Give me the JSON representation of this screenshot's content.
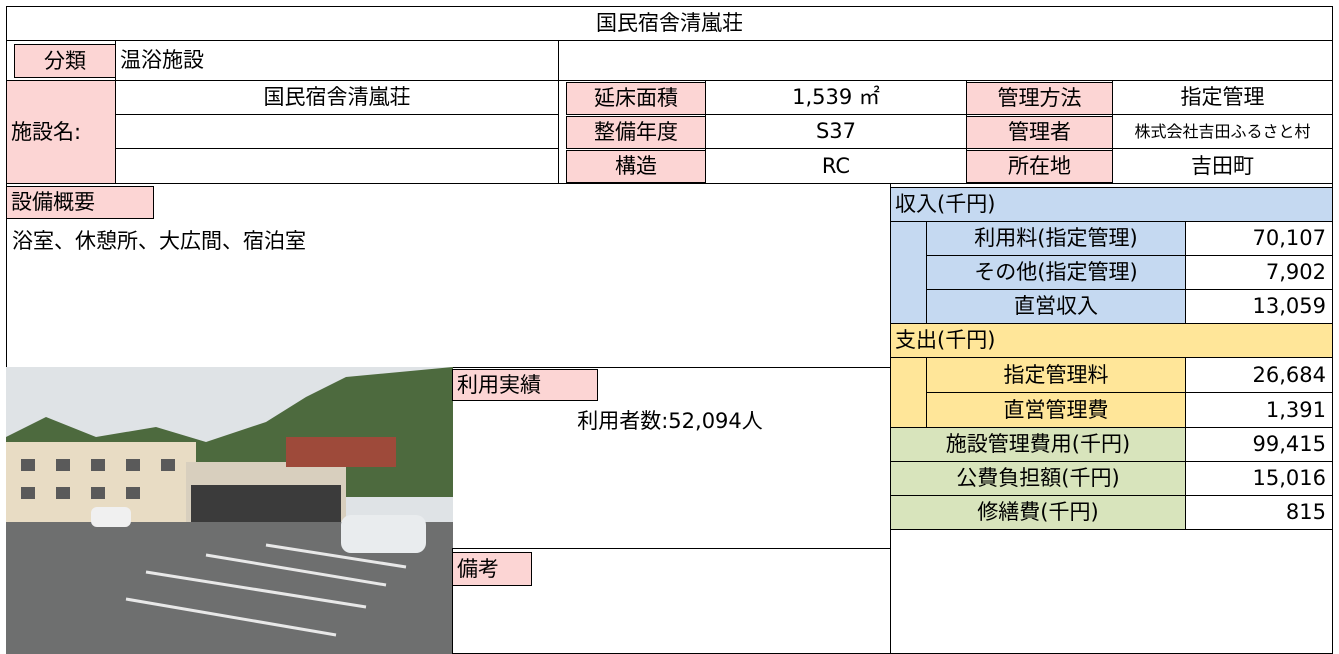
{
  "title": "国民宿舎清嵐荘",
  "category": {
    "label": "分類",
    "value": "温浴施設"
  },
  "facility_name": {
    "label": "施設名:",
    "value": "国民宿舎清嵐荘"
  },
  "details": [
    {
      "label": "延床面積",
      "value": "1,539 ㎡"
    },
    {
      "label": "整備年度",
      "value": "S37"
    },
    {
      "label": "構造",
      "value": "RC"
    }
  ],
  "management": [
    {
      "label": "管理方法",
      "value": "指定管理"
    },
    {
      "label": "管理者",
      "value": "株式会社吉田ふるさと村"
    },
    {
      "label": "所在地",
      "value": "吉田町"
    }
  ],
  "equipment": {
    "label": "設備概要",
    "value": "浴室、休憩所、大広間、宿泊室"
  },
  "usage": {
    "label": "利用実績",
    "value": "利用者数:52,094人"
  },
  "remarks": {
    "label": "備考"
  },
  "income": {
    "label": "収入(千円)",
    "items": [
      {
        "label": "利用料(指定管理)",
        "value": "70,107"
      },
      {
        "label": "その他(指定管理)",
        "value": "7,902"
      },
      {
        "label": "直営収入",
        "value": "13,059"
      }
    ]
  },
  "expenses": {
    "label": "支出(千円)",
    "items": [
      {
        "label": "指定管理料",
        "value": "26,684"
      },
      {
        "label": "直営管理費",
        "value": "1,391"
      }
    ]
  },
  "totals": [
    {
      "label": "施設管理費用(千円)",
      "value": "99,415"
    },
    {
      "label": "公費負担額(千円)",
      "value": "15,016"
    },
    {
      "label": "修繕費(千円)",
      "value": "815"
    }
  ]
}
